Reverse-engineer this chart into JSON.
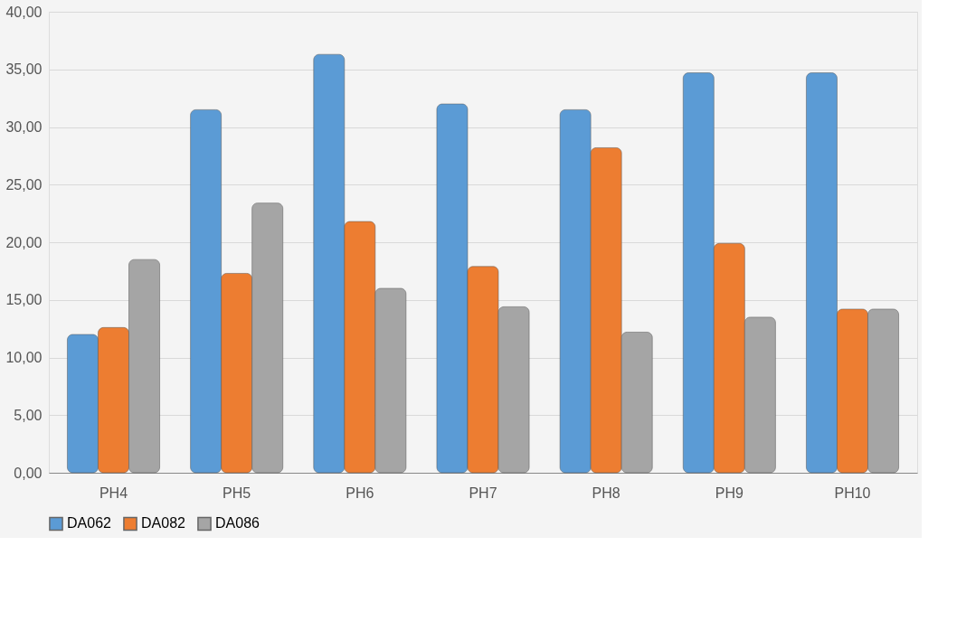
{
  "chart_data": {
    "type": "bar",
    "categories": [
      "PH4",
      "PH5",
      "PH6",
      "PH7",
      "PH8",
      "PH9",
      "PH10"
    ],
    "series": [
      {
        "name": "DA062",
        "color": "#5b9bd5",
        "values": [
          12.0,
          31.5,
          36.3,
          32.0,
          31.5,
          34.7,
          34.7
        ]
      },
      {
        "name": "DA082",
        "color": "#ed7d31",
        "values": [
          12.6,
          17.3,
          21.8,
          17.9,
          28.2,
          19.9,
          14.2
        ]
      },
      {
        "name": "DA086",
        "color": "#a5a5a5",
        "values": [
          18.5,
          23.4,
          16.0,
          14.4,
          12.2,
          13.5,
          14.2
        ]
      }
    ],
    "ylim": [
      0,
      40
    ],
    "yticks": [
      {
        "value": 0,
        "label": "0,00"
      },
      {
        "value": 5,
        "label": "5,00"
      },
      {
        "value": 10,
        "label": "10,00"
      },
      {
        "value": 15,
        "label": "15,00"
      },
      {
        "value": 20,
        "label": "20,00"
      },
      {
        "value": 25,
        "label": "25,00"
      },
      {
        "value": 30,
        "label": "30,00"
      },
      {
        "value": 35,
        "label": "35,00"
      },
      {
        "value": 40,
        "label": "40,00"
      }
    ],
    "grid": "y",
    "legend": "bottom"
  }
}
